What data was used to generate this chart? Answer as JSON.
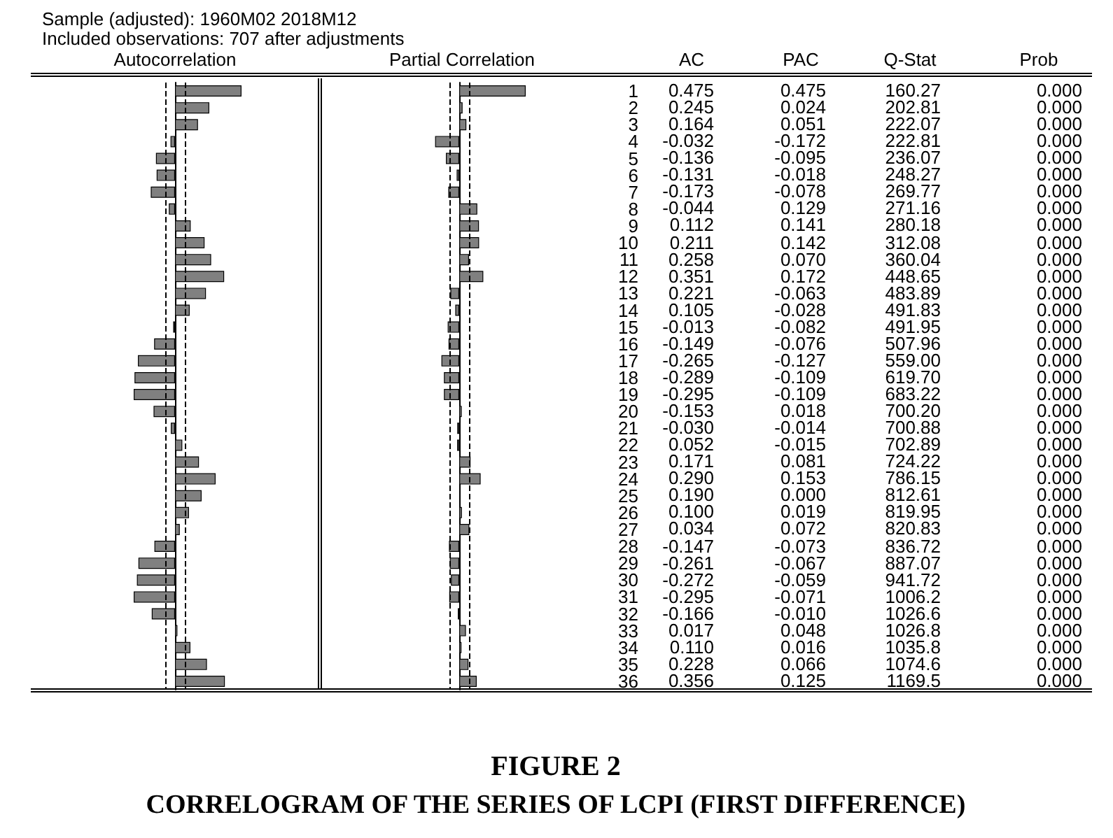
{
  "chart_data": [
    {
      "type": "bar",
      "title": "Autocorrelation",
      "orientation": "horizontal",
      "tick_labels": false,
      "categories": [
        "1",
        "2",
        "3",
        "4",
        "5",
        "6",
        "7",
        "8",
        "9",
        "10",
        "11",
        "12",
        "13",
        "14",
        "15",
        "16",
        "17",
        "18",
        "19",
        "20",
        "21",
        "22",
        "23",
        "24",
        "25",
        "26",
        "27",
        "28",
        "29",
        "30",
        "31",
        "32",
        "33",
        "34",
        "35",
        "36"
      ],
      "annotations": [
        "AC"
      ],
      "ref_lines": [
        {
          "axis": "x",
          "value": -0.075,
          "line_style": "dashed"
        },
        {
          "axis": "x",
          "value": 0.075,
          "line_style": "dashed"
        }
      ],
      "series": [
        {
          "color": "#808080",
          "values": [
            0.475,
            0.245,
            0.164,
            -0.032,
            -0.136,
            -0.131,
            -0.173,
            -0.044,
            0.112,
            0.211,
            0.258,
            0.351,
            0.221,
            0.105,
            -0.013,
            -0.149,
            -0.265,
            -0.289,
            -0.295,
            -0.153,
            -0.03,
            0.052,
            0.171,
            0.29,
            0.19,
            0.1,
            0.034,
            -0.147,
            -0.261,
            -0.272,
            -0.295,
            -0.166,
            0.017,
            0.11,
            0.228,
            0.356
          ],
          "value_labels": [
            "0.475",
            "0.245",
            "0.164",
            "-0.032",
            "-0.136",
            "-0.131",
            "-0.173",
            "-0.044",
            "0.112",
            "0.211",
            "0.258",
            "0.351",
            "0.221",
            "0.105",
            "-0.013",
            "-0.149",
            "-0.265",
            "-0.289",
            "-0.295",
            "-0.153",
            "-0.030",
            "0.052",
            "0.171",
            "0.290",
            "0.190",
            "0.100",
            "0.034",
            "-0.147",
            "-0.261",
            "-0.272",
            "-0.295",
            "-0.166",
            "0.017",
            "0.110",
            "0.228",
            "0.356"
          ]
        }
      ]
    },
    {
      "type": "bar",
      "title": "Partial Correlation",
      "orientation": "horizontal",
      "tick_labels": "y",
      "categories": [
        "1",
        "2",
        "3",
        "4",
        "5",
        "6",
        "7",
        "8",
        "9",
        "10",
        "11",
        "12",
        "13",
        "14",
        "15",
        "16",
        "17",
        "18",
        "19",
        "20",
        "21",
        "22",
        "23",
        "24",
        "25",
        "26",
        "27",
        "28",
        "29",
        "30",
        "31",
        "32",
        "33",
        "34",
        "35",
        "36"
      ],
      "annotations": [
        "PAC"
      ],
      "ref_lines": [
        {
          "axis": "x",
          "value": -0.075,
          "line_style": "dashed"
        },
        {
          "axis": "x",
          "value": 0.075,
          "line_style": "dashed"
        }
      ],
      "series": [
        {
          "color": "#808080",
          "values": [
            0.475,
            0.024,
            0.051,
            -0.172,
            -0.095,
            -0.018,
            -0.078,
            0.129,
            0.141,
            0.142,
            0.07,
            0.172,
            -0.063,
            -0.028,
            -0.082,
            -0.076,
            -0.127,
            -0.109,
            -0.109,
            0.018,
            -0.014,
            -0.015,
            0.081,
            0.153,
            0.0,
            0.019,
            0.072,
            -0.073,
            -0.067,
            -0.059,
            -0.071,
            -0.01,
            0.048,
            0.016,
            0.066,
            0.125
          ],
          "value_labels": [
            "0.475",
            "0.024",
            "0.051",
            "-0.172",
            "-0.095",
            "-0.018",
            "-0.078",
            "0.129",
            "0.141",
            "0.142",
            "0.070",
            "0.172",
            "-0.063",
            "-0.028",
            "-0.082",
            "-0.076",
            "-0.127",
            "-0.109",
            "-0.109",
            "0.018",
            "-0.014",
            "-0.015",
            "0.081",
            "0.153",
            "0.000",
            "0.019",
            "0.072",
            "-0.073",
            "-0.067",
            "-0.059",
            "-0.071",
            "-0.010",
            "0.048",
            "0.016",
            "0.066",
            "0.125"
          ]
        }
      ]
    },
    {
      "type": "other",
      "title": "FIGURE 2",
      "subtitle": "CORRELOGRAM OF THE SERIES OF LCPI (FIRST DIFFERENCE)",
      "annotations": [
        "Sample (adjusted): 1960M02 2018M12",
        "Included observations: 707 after adjustments",
        "Q-Stat",
        "160.27",
        "202.81",
        "222.07",
        "222.81",
        "236.07",
        "248.27",
        "269.77",
        "271.16",
        "280.18",
        "312.08",
        "360.04",
        "448.65",
        "483.89",
        "491.83",
        "491.95",
        "507.96",
        "559.00",
        "619.70",
        "683.22",
        "700.20",
        "700.88",
        "702.89",
        "724.22",
        "786.15",
        "812.61",
        "819.95",
        "820.83",
        "836.72",
        "887.07",
        "941.72",
        "1006.2",
        "1026.6",
        "1026.8",
        "1035.8",
        "1074.6",
        "1169.5",
        "Prob",
        "0.000",
        "0.000",
        "0.000",
        "0.000",
        "0.000",
        "0.000",
        "0.000",
        "0.000",
        "0.000",
        "0.000",
        "0.000",
        "0.000",
        "0.000",
        "0.000",
        "0.000",
        "0.000",
        "0.000",
        "0.000",
        "0.000",
        "0.000",
        "0.000",
        "0.000",
        "0.000",
        "0.000",
        "0.000",
        "0.000",
        "0.000",
        "0.000",
        "0.000",
        "0.000",
        "0.000",
        "0.000",
        "0.000",
        "0.000",
        "0.000",
        "0.000"
      ]
    }
  ]
}
